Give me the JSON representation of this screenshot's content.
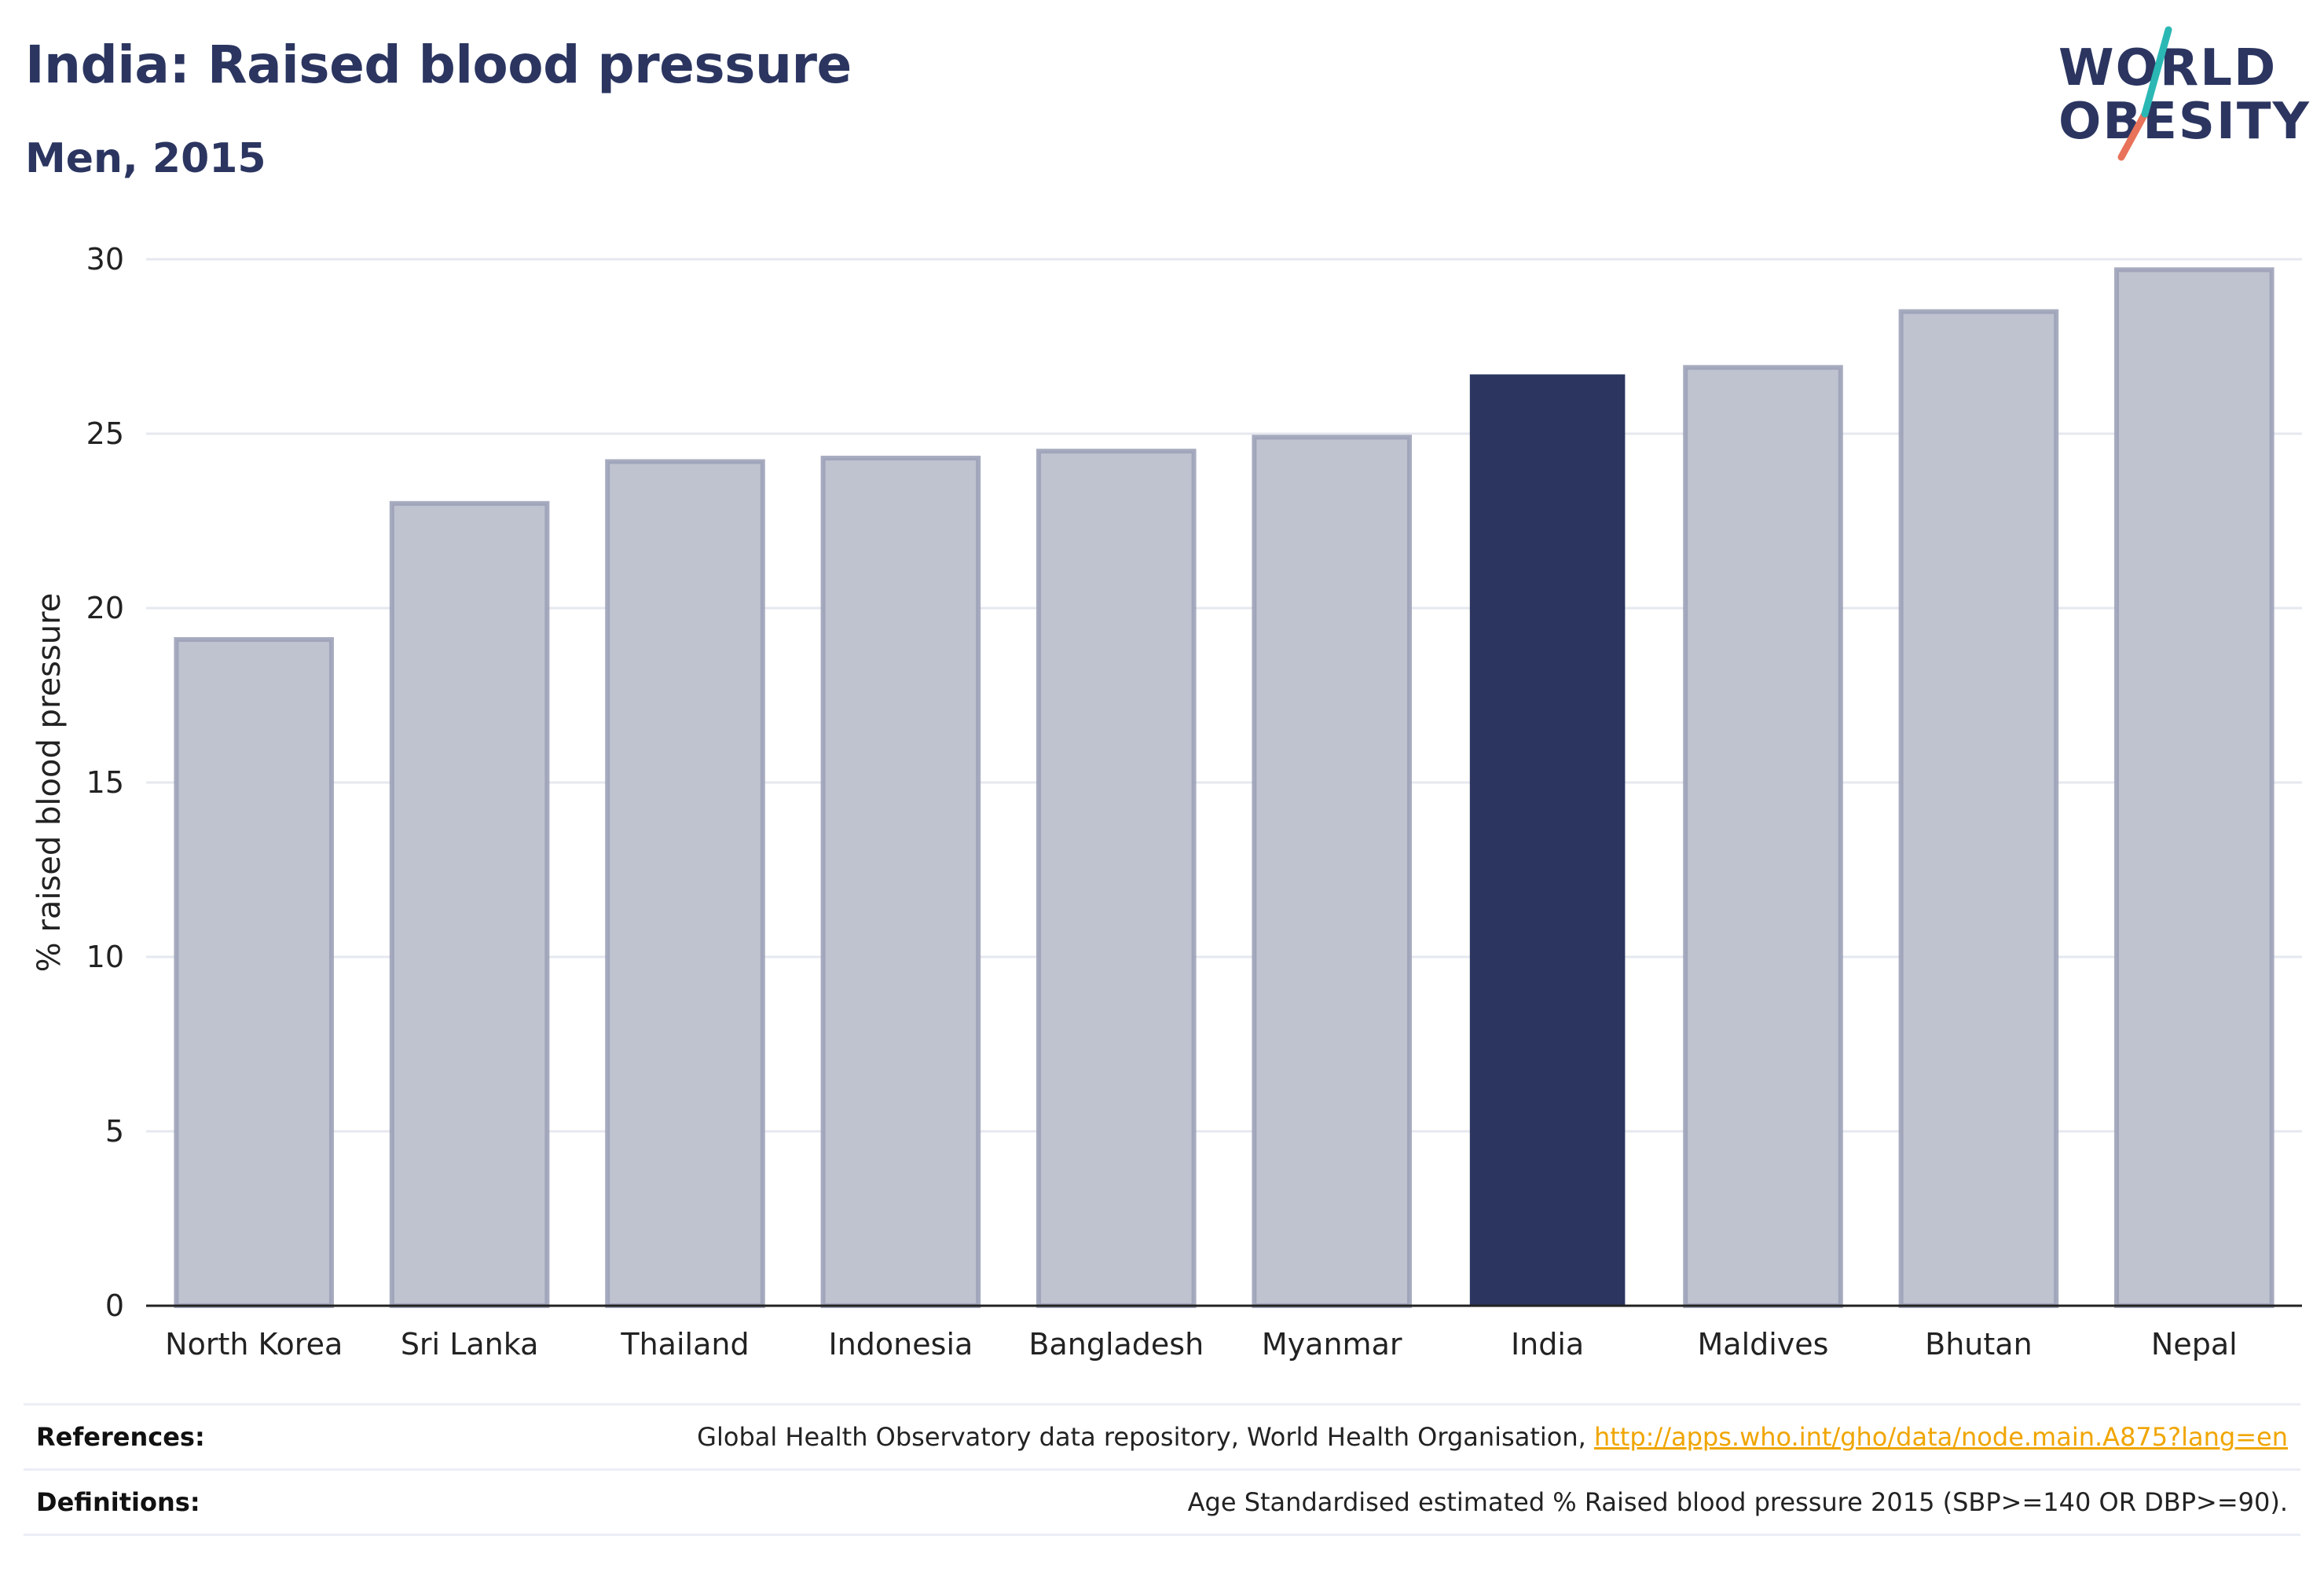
{
  "header": {
    "title": "India: Raised blood pressure",
    "subtitle": "Men, 2015"
  },
  "logo": {
    "line1": "WORLD",
    "line2": "OBESITY",
    "accent_colors": [
      "#2bb8b4",
      "#e8735a"
    ]
  },
  "colors": {
    "highlight": "#2b3560",
    "bar": "#bfc2cf",
    "bar_stroke": "#9da2b8",
    "link": "#f0a500"
  },
  "chart_data": {
    "type": "bar",
    "categories": [
      "North Korea",
      "Sri Lanka",
      "Thailand",
      "Indonesia",
      "Bangladesh",
      "Myanmar",
      "India",
      "Maldives",
      "Bhutan",
      "Nepal"
    ],
    "values": [
      19.1,
      23.0,
      24.2,
      24.3,
      24.5,
      24.9,
      26.7,
      26.9,
      28.5,
      29.7
    ],
    "highlight": "India",
    "ylabel": "% raised blood pressure",
    "ylim": [
      0,
      30
    ],
    "yticks": [
      0,
      5,
      10,
      15,
      20,
      25,
      30
    ],
    "grid": true
  },
  "footer": {
    "references_label": "References:",
    "references_text": "Global Health Observatory data repository, World Health Organisation, ",
    "references_link": "http://apps.who.int/gho/data/node.main.A875?lang=en",
    "definitions_label": "Definitions:",
    "definitions_text": "Age Standardised estimated % Raised blood pressure 2015 (SBP>=140 OR DBP>=90)."
  }
}
